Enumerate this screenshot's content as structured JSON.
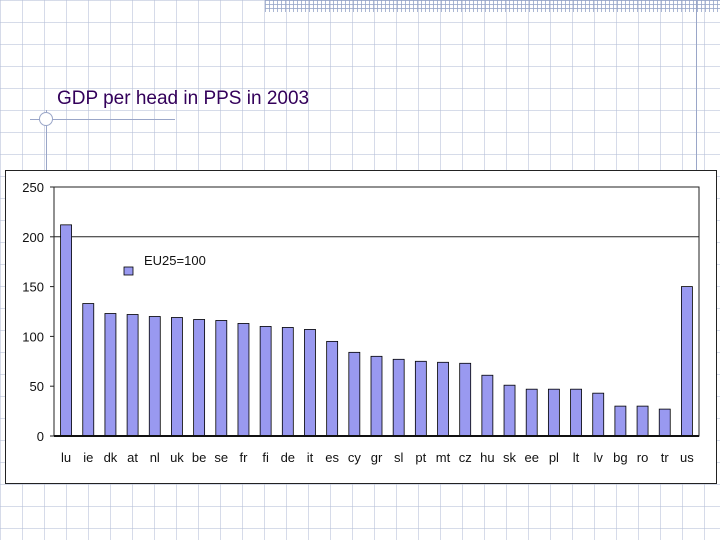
{
  "slide": {
    "title": "GDP per head in PPS in 2003"
  },
  "chart_data": {
    "type": "bar",
    "title": "",
    "xlabel": "",
    "ylabel": "",
    "categories": [
      "lu",
      "ie",
      "dk",
      "at",
      "nl",
      "uk",
      "be",
      "se",
      "fr",
      "fi",
      "de",
      "it",
      "es",
      "cy",
      "gr",
      "sl",
      "pt",
      "mt",
      "cz",
      "hu",
      "sk",
      "ee",
      "pl",
      "lt",
      "lv",
      "bg",
      "ro",
      "tr",
      "us"
    ],
    "values": [
      212,
      133,
      123,
      122,
      120,
      119,
      117,
      116,
      113,
      110,
      109,
      107,
      95,
      84,
      80,
      77,
      75,
      74,
      73,
      61,
      51,
      47,
      47,
      47,
      43,
      30,
      30,
      27,
      150
    ],
    "ylim": [
      0,
      250
    ],
    "yticks": [
      0,
      50,
      100,
      150,
      200,
      250
    ],
    "reference_line": {
      "value": 200
    },
    "legend": {
      "label": "EU25=100",
      "position": "top-left"
    },
    "grid": false,
    "colors": {
      "bar": "#9999f0",
      "bar_edge": "#000000"
    }
  }
}
